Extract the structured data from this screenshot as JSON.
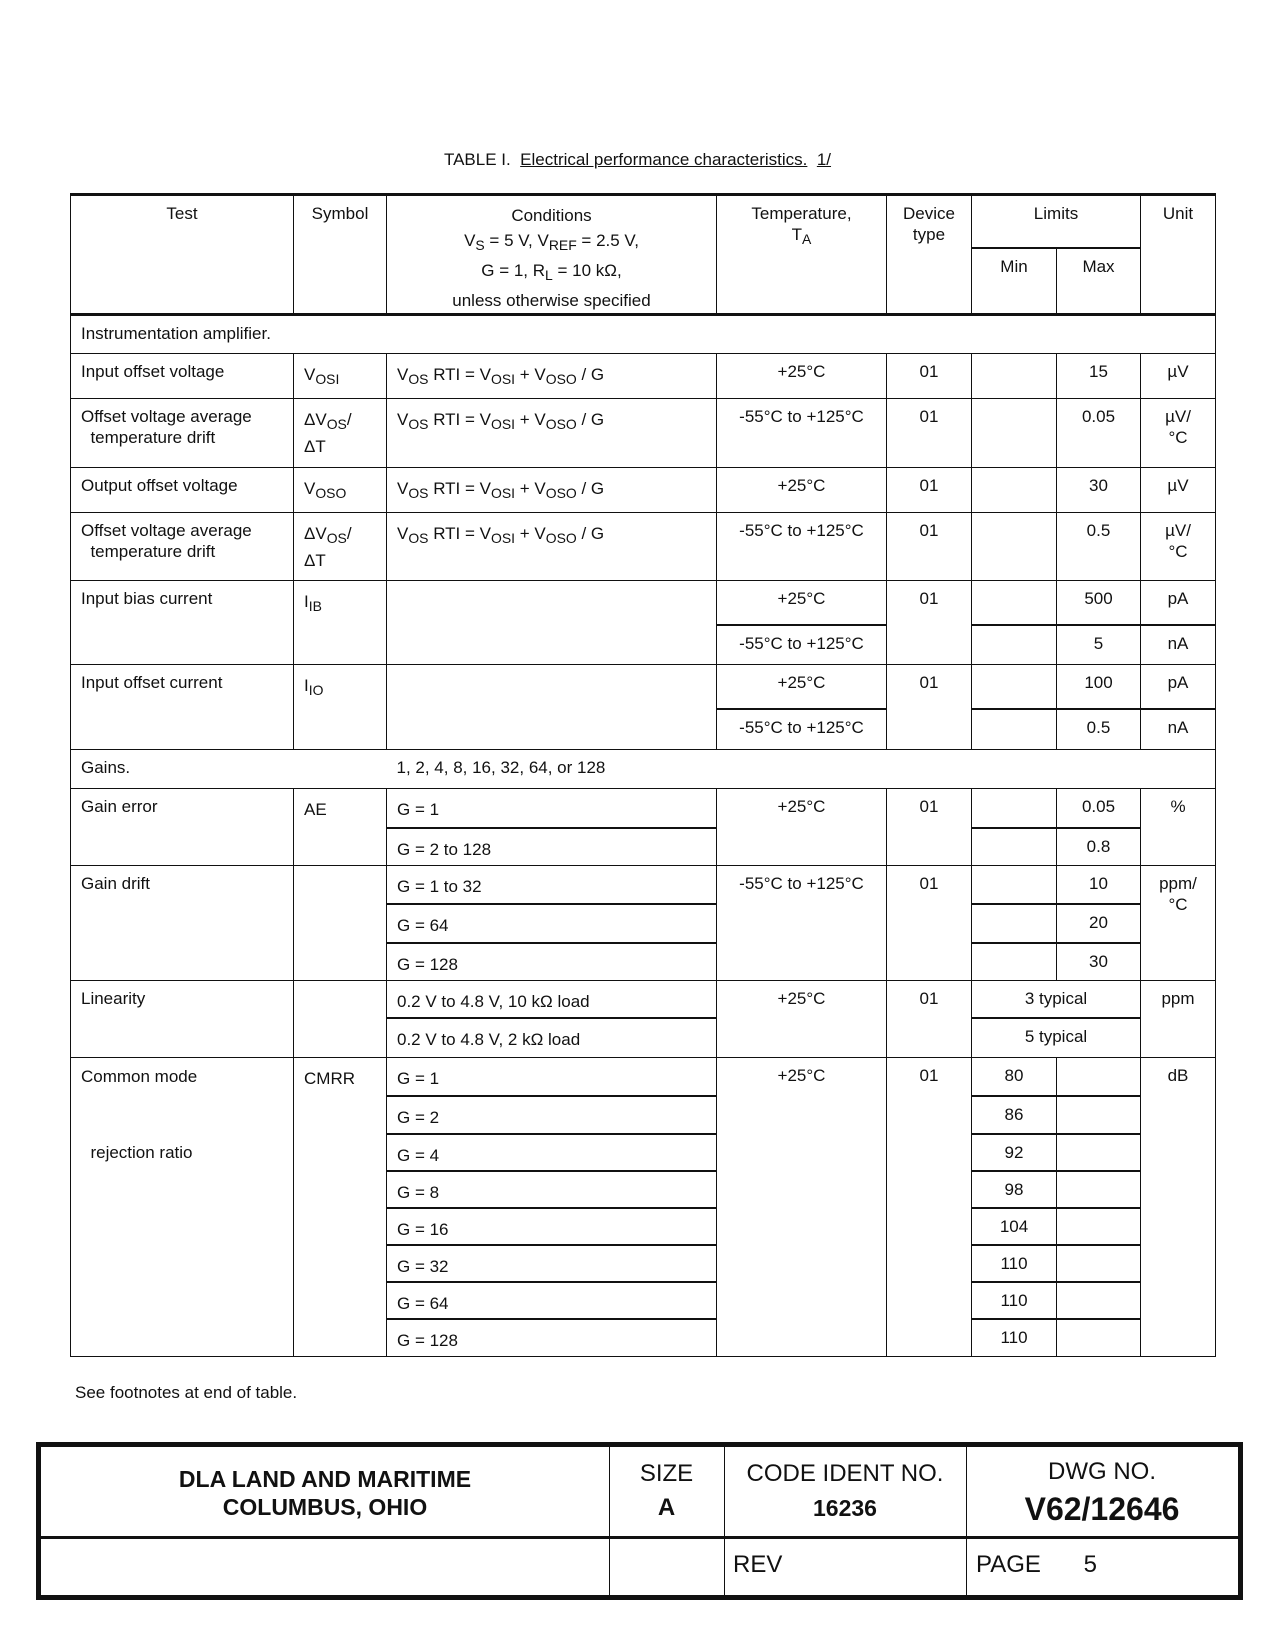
{
  "title": {
    "prefix": "TABLE I.",
    "caption": "Electrical performance characteristics.",
    "footnote_ref": "1/"
  },
  "headers": {
    "test": "Test",
    "symbol": "Symbol",
    "conditions_label": "Conditions",
    "cond_line1": [
      {
        "t": "V"
      },
      {
        "t": "S",
        "sub": true
      },
      {
        "t": " = 5 V, V"
      },
      {
        "t": "REF",
        "sub": true
      },
      {
        "t": " = 2.5 V,"
      }
    ],
    "cond_line2": [
      {
        "t": "G = 1, R"
      },
      {
        "t": "L",
        "sub": true
      },
      {
        "t": " = 10 kΩ,"
      }
    ],
    "cond_line3": "unless otherwise specified",
    "temperature": "Temperature,",
    "temperature_sym": [
      {
        "t": "T"
      },
      {
        "t": "A",
        "sub": true
      }
    ],
    "device_type": "Device\ntype",
    "limits": "Limits",
    "min": "Min",
    "max": "Max",
    "unit": "Unit"
  },
  "rows": [
    {
      "section": "Instrumentation amplifier."
    },
    {
      "test": "Input offset voltage",
      "symbol": [
        {
          "t": "V"
        },
        {
          "t": "OSI",
          "sub": true
        }
      ],
      "conditions": [
        [
          {
            "t": "V"
          },
          {
            "t": "OS",
            "sub": true
          },
          {
            "t": " RTI = V"
          },
          {
            "t": "OSI",
            "sub": true
          },
          {
            "t": " + V"
          },
          {
            "t": "OSO",
            "sub": true
          },
          {
            "t": " / G"
          }
        ]
      ],
      "temperature": [
        "+25°C"
      ],
      "device": "01",
      "limits": [
        {
          "min": "",
          "max": "15"
        }
      ],
      "unit": [
        "µV"
      ]
    },
    {
      "test": "Offset voltage average\n  temperature drift",
      "symbol": [
        {
          "t": "ΔV"
        },
        {
          "t": "OS",
          "sub": true
        },
        {
          "t": "/"
        },
        {
          "t": "ΔT",
          "newline": true
        }
      ],
      "conditions": [
        [
          {
            "t": "V"
          },
          {
            "t": "OS",
            "sub": true
          },
          {
            "t": " RTI = V"
          },
          {
            "t": "OSI",
            "sub": true
          },
          {
            "t": " + V"
          },
          {
            "t": "OSO",
            "sub": true
          },
          {
            "t": " / G"
          }
        ]
      ],
      "temperature": [
        "-55°C to +125°C"
      ],
      "device": "01",
      "limits": [
        {
          "min": "",
          "max": "0.05"
        }
      ],
      "unit": [
        "µV/\n°C"
      ]
    },
    {
      "test": "Output offset voltage",
      "symbol": [
        {
          "t": "V"
        },
        {
          "t": "OSO",
          "sub": true
        }
      ],
      "conditions": [
        [
          {
            "t": "V"
          },
          {
            "t": "OS",
            "sub": true
          },
          {
            "t": " RTI = V"
          },
          {
            "t": "OSI",
            "sub": true
          },
          {
            "t": " + V"
          },
          {
            "t": "OSO",
            "sub": true
          },
          {
            "t": " / G"
          }
        ]
      ],
      "temperature": [
        "+25°C"
      ],
      "device": "01",
      "limits": [
        {
          "min": "",
          "max": "30"
        }
      ],
      "unit": [
        "µV"
      ]
    },
    {
      "test": "Offset voltage average\n  temperature drift",
      "symbol": [
        {
          "t": "ΔV"
        },
        {
          "t": "OS",
          "sub": true
        },
        {
          "t": "/"
        },
        {
          "t": "ΔT",
          "newline": true
        }
      ],
      "conditions": [
        [
          {
            "t": "V"
          },
          {
            "t": "OS",
            "sub": true
          },
          {
            "t": " RTI = V"
          },
          {
            "t": "OSI",
            "sub": true
          },
          {
            "t": " + V"
          },
          {
            "t": "OSO",
            "sub": true
          },
          {
            "t": " / G"
          }
        ]
      ],
      "temperature": [
        "-55°C to +125°C"
      ],
      "device": "01",
      "limits": [
        {
          "min": "",
          "max": "0.5"
        }
      ],
      "unit": [
        "µV/\n°C"
      ]
    },
    {
      "test": "Input bias current",
      "symbol": [
        {
          "t": "I"
        },
        {
          "t": "IB",
          "sub": true
        }
      ],
      "conditions": [
        []
      ],
      "temperature": [
        "+25°C",
        "-55°C to +125°C"
      ],
      "device": "01",
      "limits": [
        {
          "min": "",
          "max": "500"
        },
        {
          "min": "",
          "max": "5"
        }
      ],
      "unit": [
        "pA",
        "nA"
      ]
    },
    {
      "test": "Input offset current",
      "symbol": [
        {
          "t": "I"
        },
        {
          "t": "IO",
          "sub": true
        }
      ],
      "conditions": [
        []
      ],
      "temperature": [
        "+25°C",
        "-55°C to +125°C"
      ],
      "device": "01",
      "limits": [
        {
          "min": "",
          "max": "100"
        },
        {
          "min": "",
          "max": "0.5"
        }
      ],
      "unit": [
        "pA",
        "nA"
      ]
    },
    {
      "section": "Gains.",
      "section_value": "1, 2, 4, 8, 16, 32, 64, or 128"
    },
    {
      "test": "Gain error",
      "symbol": [
        {
          "t": "AE"
        }
      ],
      "conditions": [
        [
          {
            "t": "G = 1"
          }
        ],
        [
          {
            "t": "G = 2 to 128"
          }
        ]
      ],
      "temperature": [
        "+25°C"
      ],
      "device": "01",
      "limits": [
        {
          "min": "",
          "max": "0.05"
        },
        {
          "min": "",
          "max": "0.8"
        }
      ],
      "unit": [
        "%"
      ]
    },
    {
      "test": "Gain drift",
      "symbol": [],
      "conditions": [
        [
          {
            "t": "G = 1 to 32"
          }
        ],
        [
          {
            "t": "G = 64"
          }
        ],
        [
          {
            "t": "G = 128"
          }
        ]
      ],
      "temperature": [
        "-55°C to +125°C"
      ],
      "device": "01",
      "limits": [
        {
          "min": "",
          "max": "10"
        },
        {
          "min": "",
          "max": "20"
        },
        {
          "min": "",
          "max": "30"
        }
      ],
      "unit": [
        "ppm/\n°C"
      ]
    },
    {
      "test": "Linearity",
      "symbol": [],
      "conditions": [
        [
          {
            "t": "0.2 V to 4.8 V, 10 kΩ load"
          }
        ],
        [
          {
            "t": "0.2 V to 4.8 V, 2 kΩ load"
          }
        ]
      ],
      "temperature": [
        "+25°C"
      ],
      "device": "01",
      "limits": [
        {
          "typical": "3 typical"
        },
        {
          "typical": "5 typical"
        }
      ],
      "unit": [
        "ppm"
      ]
    },
    {
      "test": "Common mode\n\n  rejection ratio",
      "symbol": [
        {
          "t": "CMRR"
        }
      ],
      "conditions": [
        [
          {
            "t": "G = 1"
          }
        ],
        [
          {
            "t": "G = 2"
          }
        ],
        [
          {
            "t": "G = 4"
          }
        ],
        [
          {
            "t": "G = 8"
          }
        ],
        [
          {
            "t": "G = 16"
          }
        ],
        [
          {
            "t": "G = 32"
          }
        ],
        [
          {
            "t": "G = 64"
          }
        ],
        [
          {
            "t": "G = 128"
          }
        ]
      ],
      "temperature": [
        "+25°C"
      ],
      "device": "01",
      "limits": [
        {
          "min": "80",
          "max": ""
        },
        {
          "min": "86",
          "max": ""
        },
        {
          "min": "92",
          "max": ""
        },
        {
          "min": "98",
          "max": ""
        },
        {
          "min": "104",
          "max": ""
        },
        {
          "min": "110",
          "max": ""
        },
        {
          "min": "110",
          "max": ""
        },
        {
          "min": "110",
          "max": ""
        }
      ],
      "unit": [
        "dB"
      ]
    }
  ],
  "footnote": "See footnotes at end of table.",
  "title_block": {
    "org_line1": "DLA LAND AND MARITIME",
    "org_line2": "COLUMBUS, OHIO",
    "size_label": "SIZE",
    "size_value": "A",
    "code_label": "CODE IDENT NO.",
    "code_value": "16236",
    "dwg_label": "DWG NO.",
    "dwg_value": "V62/12646",
    "rev_label": "REV",
    "rev_value": "",
    "page_label": "PAGE",
    "page_value": "5"
  }
}
